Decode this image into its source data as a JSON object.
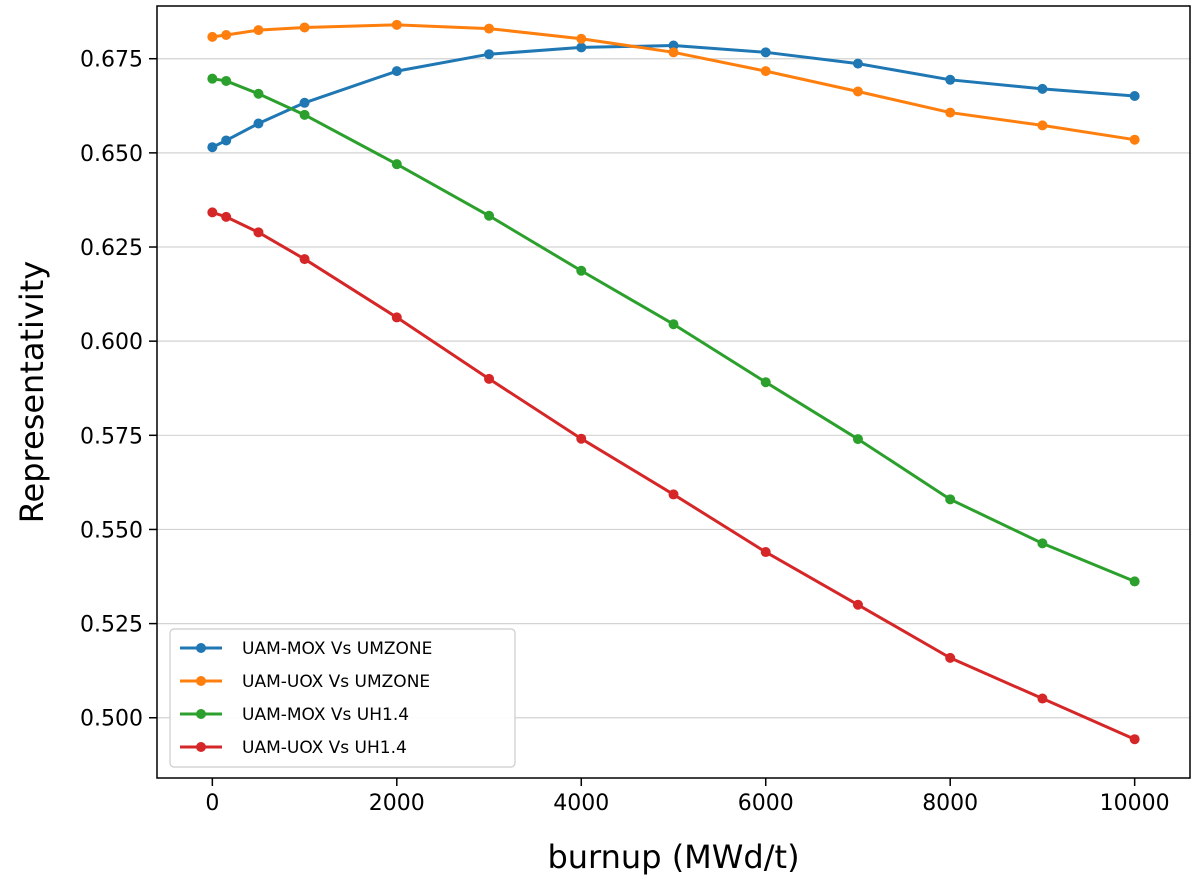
{
  "chart_data": {
    "type": "line",
    "title": "",
    "xlabel": "burnup (MWd/t)",
    "ylabel": "Representativity",
    "xlim": [
      -600,
      10600
    ],
    "ylim": [
      0.484,
      0.689
    ],
    "xticks": [
      0,
      2000,
      4000,
      6000,
      8000,
      10000
    ],
    "xtick_labels": [
      "0",
      "2000",
      "4000",
      "6000",
      "8000",
      "10000"
    ],
    "yticks": [
      0.5,
      0.525,
      0.55,
      0.575,
      0.6,
      0.625,
      0.65,
      0.675
    ],
    "ytick_labels": [
      "0.500",
      "0.525",
      "0.550",
      "0.575",
      "0.600",
      "0.625",
      "0.650",
      "0.675"
    ],
    "grid": "horizontal",
    "legend_position": "lower-left",
    "x": [
      0,
      150,
      500,
      1000,
      2000,
      3000,
      4000,
      5000,
      6000,
      7000,
      8000,
      9000,
      10000
    ],
    "series": [
      {
        "name": "UAM-MOX Vs UMZONE",
        "color": "#1f77b4",
        "values": [
          0.6515,
          0.6533,
          0.6578,
          0.6633,
          0.6717,
          0.6762,
          0.678,
          0.6785,
          0.6767,
          0.6737,
          0.6694,
          0.667,
          0.6651
        ]
      },
      {
        "name": "UAM-UOX Vs UMZONE",
        "color": "#ff7f0e",
        "values": [
          0.6808,
          0.6813,
          0.6826,
          0.6833,
          0.684,
          0.683,
          0.6803,
          0.6767,
          0.6717,
          0.6663,
          0.6607,
          0.6573,
          0.6535
        ]
      },
      {
        "name": "UAM-MOX Vs UH1.4",
        "color": "#2ca02c",
        "values": [
          0.6697,
          0.6691,
          0.6657,
          0.6601,
          0.647,
          0.6333,
          0.6187,
          0.6045,
          0.5891,
          0.574,
          0.558,
          0.5463,
          0.5362
        ]
      },
      {
        "name": "UAM-UOX Vs UH1.4",
        "color": "#d62728",
        "values": [
          0.6342,
          0.633,
          0.6289,
          0.6218,
          0.6063,
          0.59,
          0.5741,
          0.5593,
          0.544,
          0.53,
          0.5159,
          0.5051,
          0.4943
        ]
      }
    ]
  }
}
